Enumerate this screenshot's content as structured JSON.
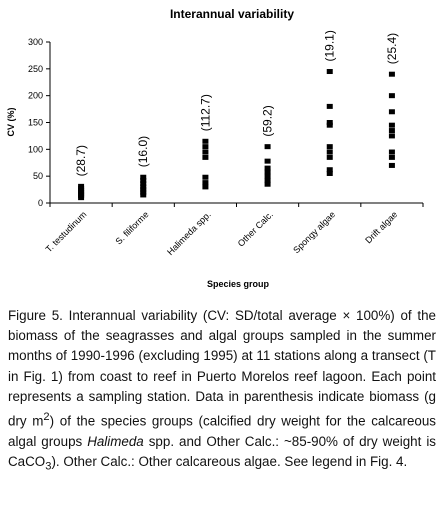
{
  "chart_data": {
    "type": "scatter",
    "title": "Interannual variability",
    "ylabel": "CV (%)",
    "xlabel": "Species group",
    "ylim": [
      0,
      300
    ],
    "yticks": [
      "0",
      "50",
      "100",
      "150",
      "200",
      "250",
      "300"
    ],
    "categories": [
      "T. testudinum",
      "S. filiforme",
      "Halimeda spp.",
      "Other Calc.",
      "Spongy algae",
      "Drift algae"
    ],
    "annotations": [
      "(28.7)",
      "(16.0)",
      "(112.7)",
      "(59.2)",
      "(19.1)",
      "(25.4)"
    ],
    "points": [
      [
        10,
        14,
        17,
        20,
        23,
        27,
        31
      ],
      [
        15,
        20,
        25,
        30,
        36,
        42,
        48
      ],
      [
        30,
        38,
        48,
        85,
        95,
        105,
        115
      ],
      [
        35,
        42,
        50,
        58,
        65,
        78,
        105
      ],
      [
        55,
        62,
        85,
        95,
        105,
        145,
        150,
        180,
        245
      ],
      [
        70,
        85,
        95,
        125,
        135,
        145,
        170,
        200,
        240
      ]
    ]
  },
  "caption": {
    "p1": "Figure 5. Interannual variability (CV: SD/total average × 100%) of the biomass of the seagrasses and algal groups sampled in the summer months of 1990-1996 (excluding 1995) at 11 stations along a transect (T in Fig. 1) from coast to reef in Puerto Morelos reef lagoon. Each point represents a sampling station. Data in parenthesis indicate biomass (g dry m",
    "sup2": "2",
    "p2": ") of the species groups (calcified dry weight for the calcareous algal groups ",
    "halimeda": "Halimeda",
    "p3": " spp. and Other Calc.: ~85-90% of dry weight is CaCO",
    "sub3": "3",
    "p4": "). Other Calc.: Other calcareous algae. See legend in Fig. 4."
  }
}
